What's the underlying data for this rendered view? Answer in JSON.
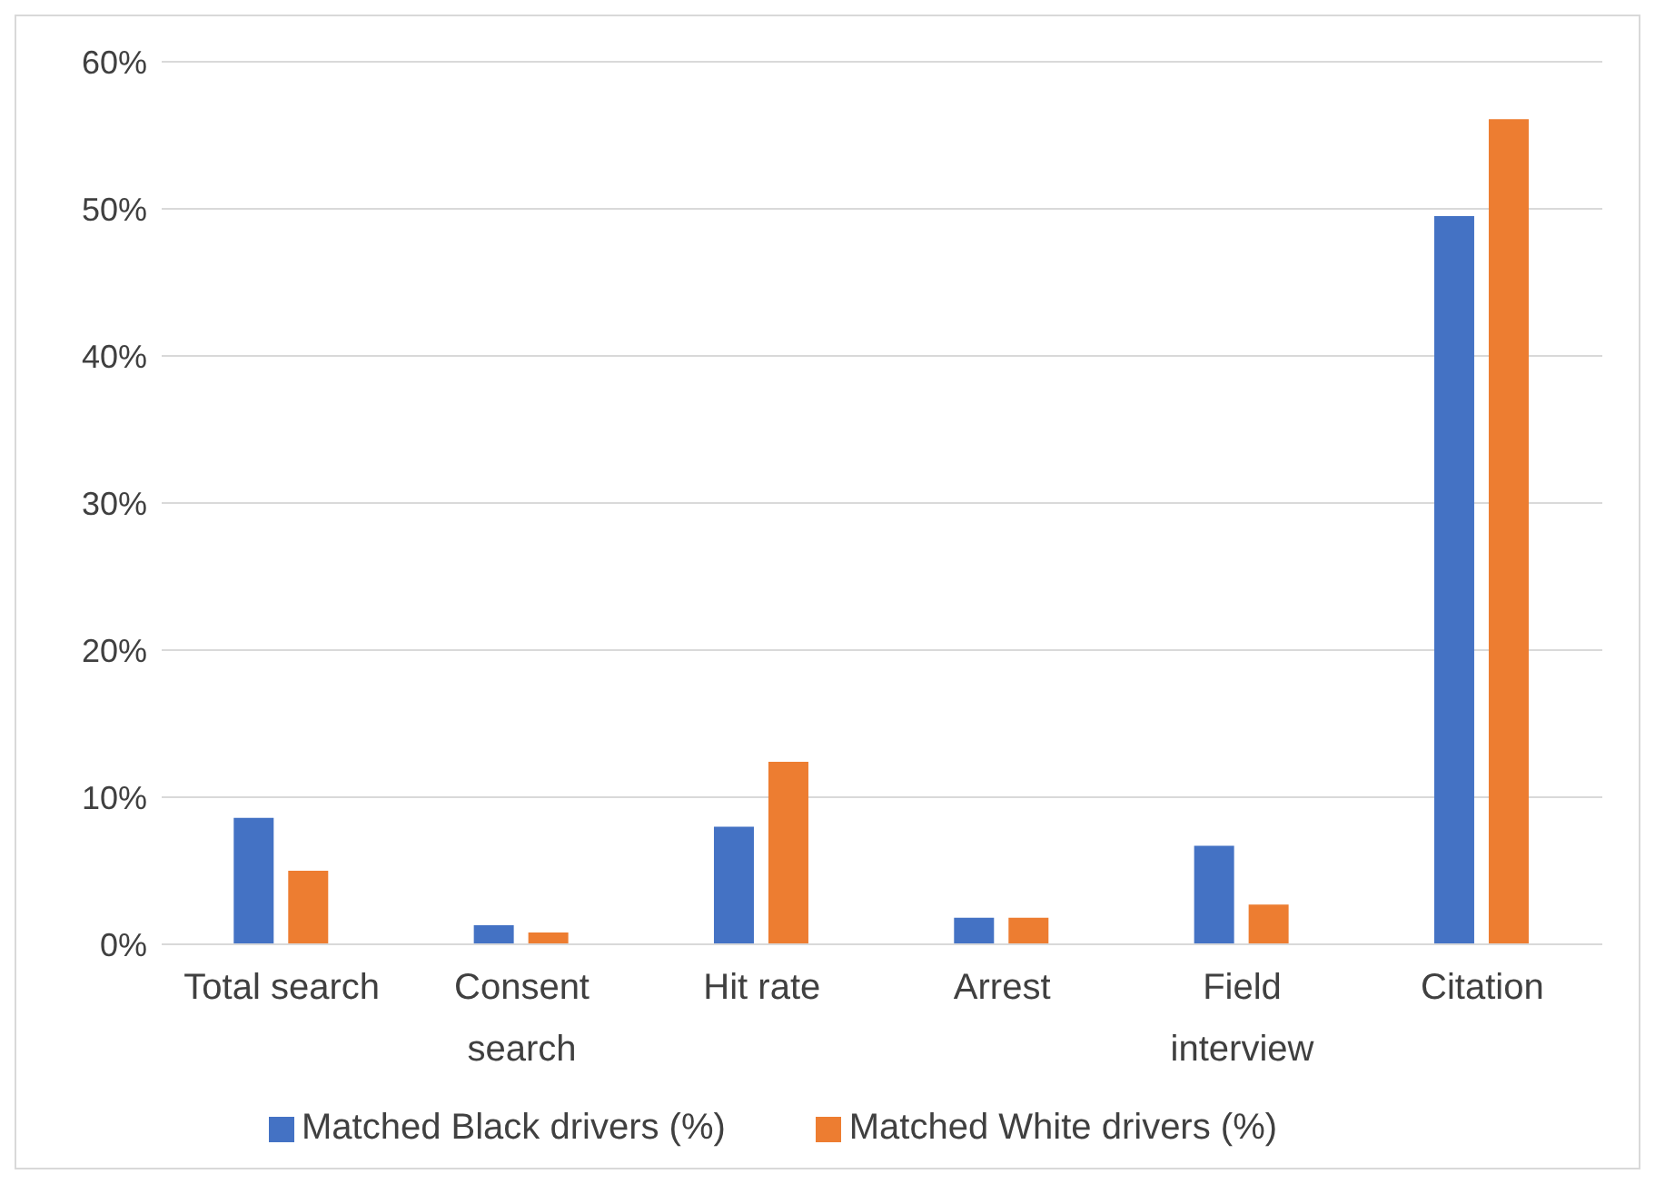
{
  "chart_data": {
    "type": "bar",
    "categories": [
      "Total search",
      "Consent search",
      "Hit rate",
      "Arrest",
      "Field interview",
      "Citation"
    ],
    "series": [
      {
        "name": "Matched Black drivers (%)",
        "color": "#4472c4",
        "values": [
          8.6,
          1.3,
          8.0,
          1.8,
          6.7,
          49.5
        ]
      },
      {
        "name": "Matched White drivers (%)",
        "color": "#ed7d31",
        "values": [
          5.0,
          0.8,
          12.4,
          1.8,
          2.7,
          56.1
        ]
      }
    ],
    "ylim": [
      0,
      60
    ],
    "yticks": [
      {
        "value": 0,
        "label": "0%"
      },
      {
        "value": 10,
        "label": "10%"
      },
      {
        "value": 20,
        "label": "20%"
      },
      {
        "value": 30,
        "label": "30%"
      },
      {
        "value": 40,
        "label": "40%"
      },
      {
        "value": 50,
        "label": "50%"
      },
      {
        "value": 60,
        "label": "60%"
      }
    ],
    "grid": "y",
    "legend": "bottom"
  }
}
